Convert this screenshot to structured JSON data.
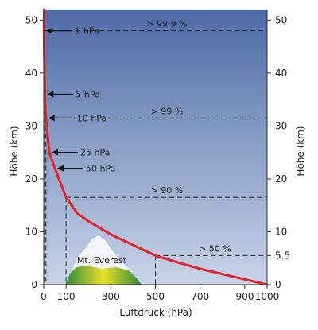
{
  "chart_data": {
    "type": "line",
    "xlabel": "Luftdruck (hPa)",
    "ylabel_left": "Höhe (km)",
    "ylabel_right": "Höhe (km)",
    "xlim": [
      0,
      1000
    ],
    "ylim": [
      0,
      52
    ],
    "x_ticks": [
      0,
      100,
      300,
      500,
      700,
      900,
      1000
    ],
    "y_ticks": [
      0,
      10,
      20,
      30,
      40,
      50
    ],
    "right_y_ticks": [
      0,
      10,
      20,
      30,
      40,
      50,
      5.5
    ],
    "right_y_tick_labels": [
      "0",
      "10",
      "20",
      "30",
      "40",
      "50",
      "5.5"
    ],
    "grid": false,
    "background_gradient": [
      "#c8d4e8",
      "#4e6aa6"
    ],
    "curve_color": "#e0242a",
    "series": [
      {
        "x": [
          2,
          1,
          5,
          10,
          25,
          50,
          100,
          150,
          200,
          300,
          400,
          500,
          600,
          700,
          800,
          900,
          1000
        ],
        "y": [
          52,
          48,
          36,
          31.5,
          25,
          22,
          16.5,
          13.5,
          12,
          9.5,
          7.5,
          5.5,
          4.2,
          3,
          2,
          1,
          0
        ]
      }
    ],
    "arrow_annotations": [
      {
        "label": "1 hPa",
        "x": 1,
        "y": 48
      },
      {
        "label": "5 hPa",
        "x": 5,
        "y": 36
      },
      {
        "label": "10 hPa",
        "x": 10,
        "y": 31.5
      },
      {
        "label": "25 hPa",
        "x": 25,
        "y": 25
      },
      {
        "label": "50 hPa",
        "x": 50,
        "y": 22
      }
    ],
    "threshold_lines": [
      {
        "label": "> 99,9 %",
        "y": 48,
        "x": 1
      },
      {
        "label": "> 99 %",
        "y": 31.5,
        "x": 10
      },
      {
        "label": "> 90 %",
        "y": 16.5,
        "x": 100
      },
      {
        "label": "> 50 %",
        "y": 5.5,
        "x": 500
      }
    ],
    "mountain_label": "Mt. Everest"
  }
}
